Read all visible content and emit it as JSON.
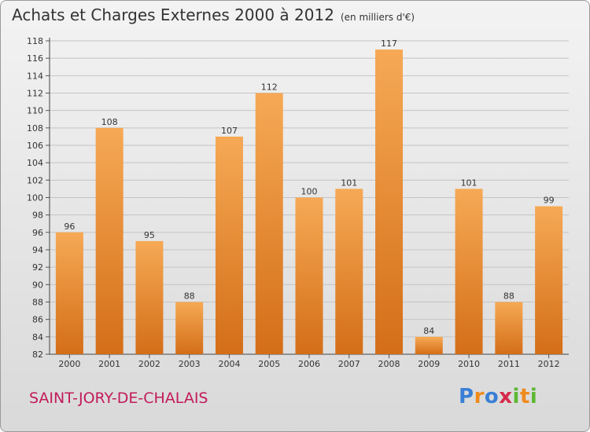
{
  "title": "Achats et Charges Externes 2000 à 2012",
  "unit": "(en milliers d'€)",
  "commune": "SAINT-JORY-DE-CHALAIS",
  "logo": {
    "text": "Proxiti",
    "letters": [
      "P",
      "r",
      "o",
      "x",
      "i",
      "t",
      "i"
    ],
    "colors": [
      "#3a7fd5",
      "#f08a1c",
      "#3a7fd5",
      "#d62a4a",
      "#5db832",
      "#f08a1c",
      "#5db832"
    ]
  },
  "colors": {
    "bar_light": "#f6a955",
    "bar_dark": "#d46e18",
    "commune": "#c21b5a"
  },
  "chart_data": {
    "type": "bar",
    "categories": [
      "2000",
      "2001",
      "2002",
      "2003",
      "2004",
      "2005",
      "2006",
      "2007",
      "2008",
      "2009",
      "2010",
      "2011",
      "2012"
    ],
    "values": [
      96,
      108,
      95,
      88,
      107,
      112,
      100,
      101,
      117,
      84,
      101,
      88,
      99
    ],
    "ylim": [
      82,
      118
    ],
    "yticks": [
      82,
      84,
      86,
      88,
      90,
      92,
      94,
      96,
      98,
      100,
      102,
      104,
      106,
      108,
      110,
      112,
      114,
      116,
      118
    ],
    "grid": true,
    "xlabel": "",
    "ylabel": ""
  }
}
